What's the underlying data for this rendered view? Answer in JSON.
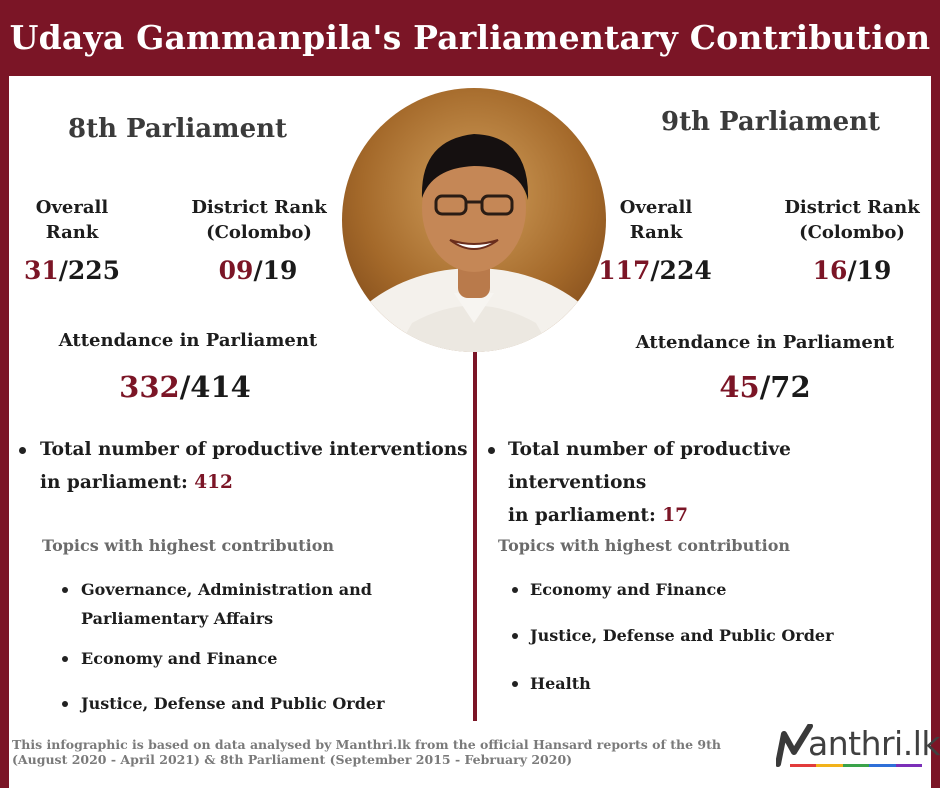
{
  "title": "Udaya Gammanpila's Parliamentary Contribution",
  "left": {
    "heading": "8th Parliament",
    "overall_label_1": "Overall",
    "overall_label_2": "Rank",
    "overall_rank": "31",
    "overall_total": "/225",
    "district_label_1": "District Rank",
    "district_label_2": "(Colombo)",
    "district_rank": "09",
    "district_total": "/19",
    "attendance_label": "Attendance in Parliament",
    "attendance_value": "332",
    "attendance_total": "/414",
    "interventions_line_1": "Total number of productive interventions",
    "interventions_line_2": "in parliament: ",
    "interventions_value": "412",
    "topics_heading": "Topics with highest contribution",
    "topics": [
      "Governance, Administration and",
      "Parliamentary Affairs",
      "Economy and Finance",
      "Justice, Defense and Public Order"
    ]
  },
  "right": {
    "heading": "9th Parliament",
    "overall_label_1": "Overall",
    "overall_label_2": "Rank",
    "overall_rank": "117",
    "overall_total": "/224",
    "district_label_1": "District Rank",
    "district_label_2": "(Colombo)",
    "district_rank": "16",
    "district_total": "/19",
    "attendance_label": "Attendance in Parliament",
    "attendance_value": "45",
    "attendance_total": "/72",
    "interventions_line_1": "Total number of productive interventions",
    "interventions_line_2": "in parliament: ",
    "interventions_value": "17",
    "topics_heading": "Topics with highest contribution",
    "topics": [
      "Economy and Finance",
      "Justice, Defense and Public Order",
      "Health"
    ]
  },
  "footnote_1": "This infographic is based on data analysed by Manthri.lk from the official Hansard reports of the 9th",
  "footnote_2": " (August 2020 - April 2021) & 8th Parliament (September 2015 - February 2020)",
  "logo_text": "anthri.lk",
  "colors": {
    "brand": "#7b1526",
    "logo_stripe": [
      "#e23b3b",
      "#f2b21a",
      "#3aa34a",
      "#2f6fd8",
      "#7b2fb8"
    ]
  }
}
